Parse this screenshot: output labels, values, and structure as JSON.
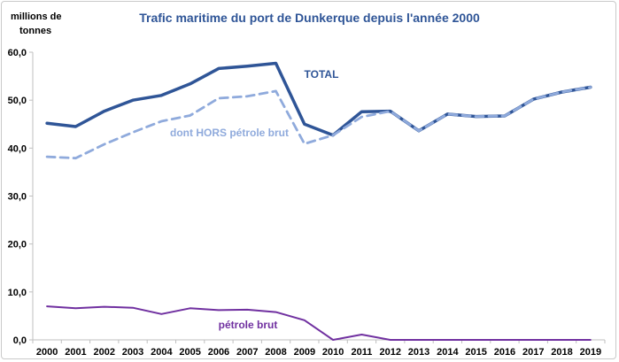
{
  "chart_data": {
    "type": "line",
    "title": "Trafic maritime du port de Dunkerque depuis l'année 2000",
    "ylabel_lines": [
      "millions de",
      "tonnes"
    ],
    "xlabel": "",
    "ylim": [
      0,
      60
    ],
    "y_ticks": [
      "0,0",
      "10,0",
      "20,0",
      "30,0",
      "40,0",
      "50,0",
      "60,0"
    ],
    "y_tick_values": [
      0,
      10,
      20,
      30,
      40,
      50,
      60
    ],
    "categories": [
      "2000",
      "2001",
      "2002",
      "2003",
      "2004",
      "2005",
      "2006",
      "2007",
      "2008",
      "2009",
      "2010",
      "2011",
      "2012",
      "2013",
      "2014",
      "2015",
      "2016",
      "2017",
      "2018",
      "2019"
    ],
    "grid": false,
    "series": [
      {
        "name": "TOTAL",
        "color": "#2f5597",
        "style": "solid",
        "values": [
          45.2,
          44.5,
          47.7,
          50.0,
          51.0,
          53.4,
          56.6,
          57.1,
          57.7,
          45.0,
          42.7,
          47.6,
          47.7,
          43.6,
          47.1,
          46.6,
          46.7,
          50.2,
          51.7,
          52.7
        ]
      },
      {
        "name": "dont HORS pétrole brut",
        "color": "#8faadc",
        "style": "dashed",
        "values": [
          38.2,
          37.9,
          40.8,
          43.3,
          45.6,
          46.8,
          50.4,
          50.8,
          51.9,
          40.9,
          42.7,
          46.5,
          47.7,
          43.6,
          47.1,
          46.6,
          46.7,
          50.2,
          51.7,
          52.7
        ]
      },
      {
        "name": "pétrole brut",
        "color": "#7030a0",
        "style": "solid",
        "values": [
          7.0,
          6.6,
          6.9,
          6.7,
          5.4,
          6.6,
          6.2,
          6.3,
          5.8,
          4.1,
          0.0,
          1.1,
          0.0,
          0.0,
          0.0,
          0.0,
          0.0,
          0.0,
          0.0,
          0.0
        ]
      }
    ]
  }
}
